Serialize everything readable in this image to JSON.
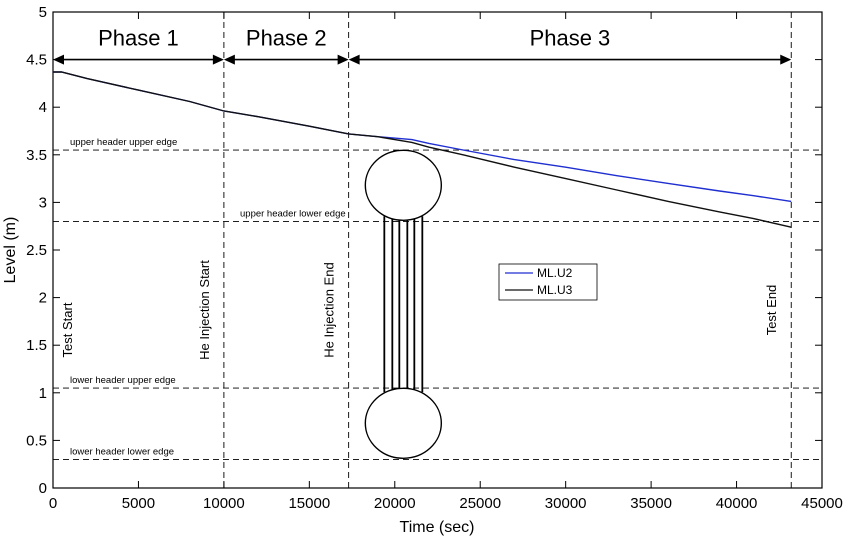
{
  "chart_data": {
    "type": "line",
    "title": "",
    "xlabel": "Time (sec)",
    "ylabel": "Level (m)",
    "xlim": [
      0,
      45000
    ],
    "ylim": [
      0,
      5
    ],
    "x_ticks": [
      "0",
      "5000",
      "10000",
      "15000",
      "20000",
      "25000",
      "30000",
      "35000",
      "40000",
      "45000"
    ],
    "y_ticks": [
      "0",
      "0.5",
      "1",
      "1.5",
      "2",
      "2.5",
      "3",
      "3.5",
      "4",
      "4.5",
      "5"
    ],
    "grid": false,
    "legend_placement": "center-right",
    "series": [
      {
        "name": "ML.U2",
        "color": "#1f2fd0",
        "x": [
          0,
          500,
          2000,
          5000,
          8000,
          10000,
          12000,
          15000,
          17300,
          19000,
          21000,
          22000,
          24000,
          27000,
          30000,
          33000,
          36000,
          39000,
          41000,
          43200
        ],
        "y": [
          4.37,
          4.37,
          4.3,
          4.18,
          4.06,
          3.96,
          3.9,
          3.8,
          3.72,
          3.69,
          3.66,
          3.62,
          3.55,
          3.45,
          3.37,
          3.28,
          3.2,
          3.12,
          3.07,
          3.01
        ]
      },
      {
        "name": "ML.U3",
        "color": "#111111",
        "x": [
          0,
          500,
          2000,
          5000,
          8000,
          10000,
          12000,
          15000,
          17300,
          19000,
          21000,
          22000,
          24000,
          27000,
          30000,
          33000,
          36000,
          39000,
          41000,
          43200
        ],
        "y": [
          4.37,
          4.37,
          4.3,
          4.18,
          4.06,
          3.96,
          3.9,
          3.8,
          3.72,
          3.69,
          3.63,
          3.58,
          3.5,
          3.37,
          3.25,
          3.13,
          3.01,
          2.9,
          2.83,
          2.74
        ]
      }
    ],
    "vertical_markers": [
      {
        "x": 10000,
        "label": "He Injection Start"
      },
      {
        "x": 17300,
        "label": "He Injection End"
      },
      {
        "x": 43200,
        "label": "Test End"
      }
    ],
    "start_marker_label": "Test Start",
    "horizontal_markers": [
      {
        "y": 3.55,
        "label": "upper header upper edge"
      },
      {
        "y": 2.8,
        "label": "upper header lower edge"
      },
      {
        "y": 1.05,
        "label": "lower header upper edge"
      },
      {
        "y": 0.3,
        "label": "lower header lower edge"
      }
    ],
    "phases": [
      {
        "label": "Phase 1",
        "from": 0,
        "to": 10000
      },
      {
        "label": "Phase 2",
        "from": 10000,
        "to": 17300
      },
      {
        "label": "Phase 3",
        "from": 17300,
        "to": 43200
      }
    ],
    "phase_arrow_level": 4.5,
    "header_schematic": {
      "center_x": 20500,
      "upper_center_y": 3.18,
      "lower_center_y": 0.68
    }
  }
}
